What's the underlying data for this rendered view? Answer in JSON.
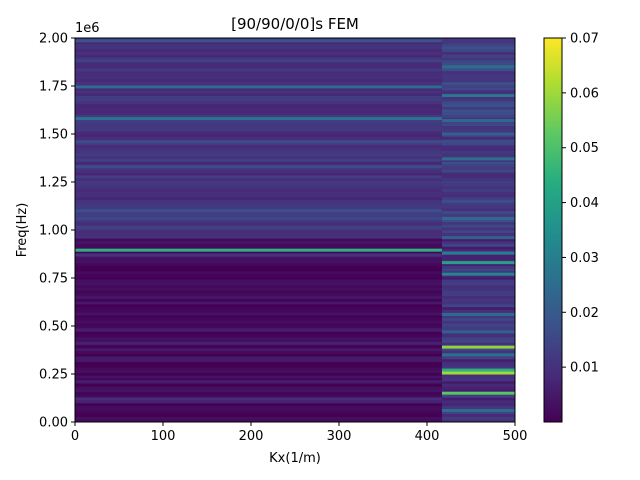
{
  "chart_data": {
    "type": "heatmap",
    "title": "[90/90/0/0]s FEM",
    "xlabel": "Kx(1/m)",
    "ylabel": "Freq(Hz)",
    "y_offset_label": "1e6",
    "xlim": [
      0,
      500
    ],
    "ylim": [
      0,
      2000000
    ],
    "x_ticks": [
      0,
      100,
      200,
      300,
      400,
      500
    ],
    "x_tick_labels": [
      "0",
      "100",
      "200",
      "300",
      "400",
      "500"
    ],
    "y_ticks": [
      0,
      0.25,
      0.5,
      0.75,
      1.0,
      1.25,
      1.5,
      1.75,
      2.0
    ],
    "y_tick_labels": [
      "0.00",
      "0.25",
      "0.50",
      "0.75",
      "1.00",
      "1.25",
      "1.50",
      "1.75",
      "2.00"
    ],
    "colormap": "viridis",
    "colorbar": {
      "min": 0.0,
      "max": 0.07,
      "ticks": [
        0.01,
        0.02,
        0.03,
        0.04,
        0.05,
        0.06,
        0.07
      ],
      "tick_labels": [
        "0.01",
        "0.02",
        "0.03",
        "0.04",
        "0.05",
        "0.06",
        "0.07"
      ]
    },
    "grid": false,
    "column_split_kx": 417,
    "regions": [
      {
        "kx_range": [
          0,
          417
        ],
        "bands": [
          {
            "freq_hz": 1985000,
            "value": 0.018
          },
          {
            "freq_hz": 1880000,
            "value": 0.014
          },
          {
            "freq_hz": 1745000,
            "value": 0.025
          },
          {
            "freq_hz": 1580000,
            "value": 0.027
          },
          {
            "freq_hz": 1460000,
            "value": 0.016
          },
          {
            "freq_hz": 1330000,
            "value": 0.016
          },
          {
            "freq_hz": 1100000,
            "value": 0.017
          },
          {
            "freq_hz": 1060000,
            "value": 0.015
          },
          {
            "freq_hz": 1015000,
            "value": 0.014
          },
          {
            "freq_hz": 895000,
            "value": 0.045
          },
          {
            "freq_hz": 870000,
            "value": 0.01
          },
          {
            "freq_hz": 480000,
            "value": 0.006
          },
          {
            "freq_hz": 410000,
            "value": 0.007
          },
          {
            "freq_hz": 210000,
            "value": 0.006
          },
          {
            "freq_hz": 120000,
            "value": 0.009
          },
          {
            "freq_hz": 105000,
            "value": 0.007
          }
        ]
      },
      {
        "kx_range": [
          417,
          500
        ],
        "bands": [
          {
            "freq_hz": 1850000,
            "value": 0.025
          },
          {
            "freq_hz": 1700000,
            "value": 0.028
          },
          {
            "freq_hz": 1570000,
            "value": 0.024
          },
          {
            "freq_hz": 1500000,
            "value": 0.022
          },
          {
            "freq_hz": 1370000,
            "value": 0.026
          },
          {
            "freq_hz": 1060000,
            "value": 0.024
          },
          {
            "freq_hz": 960000,
            "value": 0.022
          },
          {
            "freq_hz": 880000,
            "value": 0.03
          },
          {
            "freq_hz": 830000,
            "value": 0.04
          },
          {
            "freq_hz": 770000,
            "value": 0.032
          },
          {
            "freq_hz": 560000,
            "value": 0.024
          },
          {
            "freq_hz": 470000,
            "value": 0.022
          },
          {
            "freq_hz": 390000,
            "value": 0.058
          },
          {
            "freq_hz": 350000,
            "value": 0.026
          },
          {
            "freq_hz": 270000,
            "value": 0.045
          },
          {
            "freq_hz": 255000,
            "value": 0.06
          },
          {
            "freq_hz": 150000,
            "value": 0.052
          },
          {
            "freq_hz": 60000,
            "value": 0.025
          }
        ]
      }
    ]
  }
}
